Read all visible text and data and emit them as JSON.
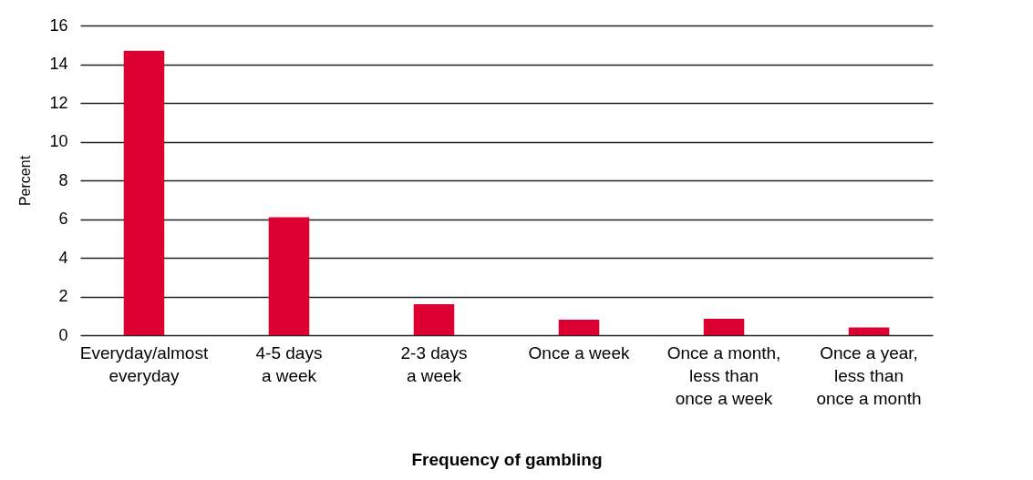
{
  "chart_data": {
    "type": "bar",
    "xlabel": "Frequency of gambling",
    "ylabel": "Percent",
    "categories": [
      "Everyday/almost everyday",
      "4-5 days a week",
      "2-3 days a week",
      "Once a week",
      "Once a month, less than once a week",
      "Once a year, less than once a month"
    ],
    "values": [
      14.7,
      6.1,
      1.6,
      0.8,
      0.85,
      0.4
    ],
    "color": "#dc0030",
    "ylim": [
      0,
      16
    ],
    "yticks": [
      0,
      2,
      4,
      6,
      8,
      10,
      12,
      14,
      16
    ],
    "grid": "y"
  }
}
